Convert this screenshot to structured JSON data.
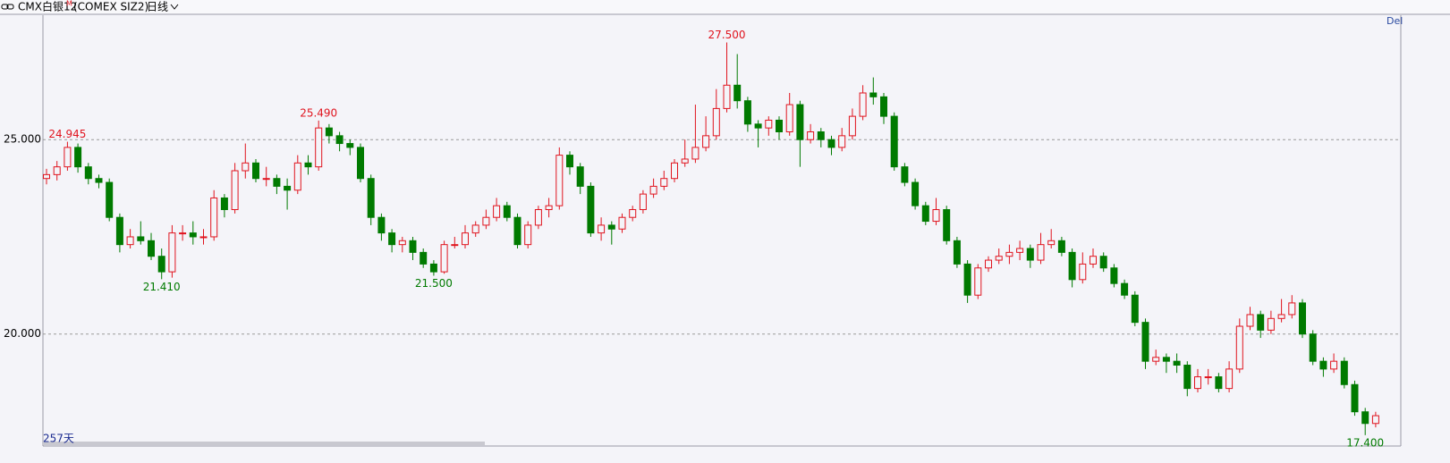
{
  "chart_data": {
    "type": "candlestick",
    "title": "CMX白银12",
    "title_badge": "M",
    "subtitle": "(COMEX SIZ2)",
    "period": "日线",
    "corner_label": "Del",
    "footer": "257天",
    "ylim": [
      17.12,
      28.2
    ],
    "yticks": [
      {
        "value": 25,
        "label": "25.000"
      },
      {
        "value": 20,
        "label": "20.000"
      }
    ],
    "grid": true,
    "up_color": "#e0141e",
    "down_color": "#007a00",
    "annotations": [
      24.945,
      {
        "value": 21.41,
        "label": "21.410"
      },
      {
        "value": 25.49,
        "label": "25.490"
      },
      {
        "value": 21.5,
        "label": "21.500"
      },
      {
        "value": 27.5,
        "label": "27.500"
      },
      {
        "value": 17.4,
        "label": "17.400"
      }
    ],
    "ohlc": [
      [
        24.0,
        24.25,
        23.85,
        24.1
      ],
      [
        24.1,
        24.45,
        23.95,
        24.3
      ],
      [
        24.3,
        24.945,
        24.2,
        24.8
      ],
      [
        24.8,
        24.9,
        24.15,
        24.3
      ],
      [
        24.3,
        24.4,
        23.85,
        24.0
      ],
      [
        24.0,
        24.1,
        23.75,
        23.9
      ],
      [
        23.9,
        24.0,
        22.9,
        23.0
      ],
      [
        23.0,
        23.1,
        22.1,
        22.3
      ],
      [
        22.3,
        22.7,
        22.2,
        22.5
      ],
      [
        22.5,
        22.9,
        22.3,
        22.4
      ],
      [
        22.4,
        22.6,
        21.9,
        22.0
      ],
      [
        22.0,
        22.2,
        21.41,
        21.6
      ],
      [
        21.6,
        22.8,
        21.45,
        22.6
      ],
      [
        22.6,
        22.8,
        22.4,
        22.6
      ],
      [
        22.6,
        22.9,
        22.3,
        22.5
      ],
      [
        22.5,
        22.7,
        22.3,
        22.5
      ],
      [
        22.5,
        23.7,
        22.4,
        23.5
      ],
      [
        23.5,
        23.6,
        23.0,
        23.2
      ],
      [
        23.2,
        24.4,
        23.1,
        24.2
      ],
      [
        24.2,
        24.9,
        24.0,
        24.4
      ],
      [
        24.4,
        24.5,
        23.9,
        24.0
      ],
      [
        24.0,
        24.3,
        23.8,
        24.0
      ],
      [
        24.0,
        24.1,
        23.6,
        23.8
      ],
      [
        23.8,
        24.0,
        23.2,
        23.7
      ],
      [
        23.7,
        24.6,
        23.6,
        24.4
      ],
      [
        24.4,
        24.6,
        24.1,
        24.3
      ],
      [
        24.3,
        25.49,
        24.2,
        25.3
      ],
      [
        25.3,
        25.4,
        24.9,
        25.1
      ],
      [
        25.1,
        25.2,
        24.7,
        24.9
      ],
      [
        24.9,
        25.0,
        24.6,
        24.8
      ],
      [
        24.8,
        24.9,
        23.9,
        24.0
      ],
      [
        24.0,
        24.1,
        22.8,
        23.0
      ],
      [
        23.0,
        23.1,
        22.4,
        22.6
      ],
      [
        22.6,
        22.7,
        22.1,
        22.3
      ],
      [
        22.3,
        22.5,
        22.1,
        22.4
      ],
      [
        22.4,
        22.5,
        21.9,
        22.1
      ],
      [
        22.1,
        22.2,
        21.7,
        21.8
      ],
      [
        21.8,
        21.9,
        21.5,
        21.6
      ],
      [
        21.6,
        22.4,
        21.55,
        22.3
      ],
      [
        22.3,
        22.5,
        22.2,
        22.3
      ],
      [
        22.3,
        22.8,
        22.2,
        22.6
      ],
      [
        22.6,
        22.9,
        22.5,
        22.8
      ],
      [
        22.8,
        23.2,
        22.7,
        23.0
      ],
      [
        23.0,
        23.5,
        22.9,
        23.3
      ],
      [
        23.3,
        23.4,
        22.9,
        23.0
      ],
      [
        23.0,
        23.1,
        22.2,
        22.3
      ],
      [
        22.3,
        22.9,
        22.2,
        22.8
      ],
      [
        22.8,
        23.3,
        22.7,
        23.2
      ],
      [
        23.2,
        23.5,
        23.0,
        23.3
      ],
      [
        23.3,
        24.8,
        23.2,
        24.6
      ],
      [
        24.6,
        24.7,
        24.1,
        24.3
      ],
      [
        24.3,
        24.4,
        23.6,
        23.8
      ],
      [
        23.8,
        23.9,
        22.5,
        22.6
      ],
      [
        22.6,
        23.0,
        22.4,
        22.8
      ],
      [
        22.8,
        22.9,
        22.3,
        22.7
      ],
      [
        22.7,
        23.1,
        22.6,
        23.0
      ],
      [
        23.0,
        23.3,
        22.9,
        23.2
      ],
      [
        23.2,
        23.7,
        23.1,
        23.6
      ],
      [
        23.6,
        24.0,
        23.5,
        23.8
      ],
      [
        23.8,
        24.2,
        23.7,
        24.0
      ],
      [
        24.0,
        24.5,
        23.9,
        24.4
      ],
      [
        24.4,
        25.0,
        24.3,
        24.5
      ],
      [
        24.5,
        25.9,
        24.4,
        24.8
      ],
      [
        24.8,
        25.6,
        24.7,
        25.1
      ],
      [
        25.1,
        26.3,
        25.0,
        25.8
      ],
      [
        25.8,
        27.5,
        25.7,
        26.4
      ],
      [
        26.4,
        27.2,
        25.8,
        26.0
      ],
      [
        26.0,
        26.1,
        25.2,
        25.4
      ],
      [
        25.4,
        25.5,
        24.8,
        25.3
      ],
      [
        25.3,
        25.6,
        25.1,
        25.5
      ],
      [
        25.5,
        25.6,
        25.0,
        25.2
      ],
      [
        25.2,
        26.2,
        25.1,
        25.9
      ],
      [
        25.9,
        26.0,
        24.3,
        25.0
      ],
      [
        25.0,
        25.4,
        24.9,
        25.2
      ],
      [
        25.2,
        25.3,
        24.8,
        25.0
      ],
      [
        25.0,
        25.1,
        24.6,
        24.8
      ],
      [
        24.8,
        25.3,
        24.7,
        25.1
      ],
      [
        25.1,
        25.8,
        25.0,
        25.6
      ],
      [
        25.6,
        26.4,
        25.5,
        26.2
      ],
      [
        26.2,
        26.6,
        25.9,
        26.1
      ],
      [
        26.1,
        26.2,
        25.4,
        25.6
      ],
      [
        25.6,
        25.7,
        24.2,
        24.3
      ],
      [
        24.3,
        24.4,
        23.8,
        23.9
      ],
      [
        23.9,
        24.0,
        23.2,
        23.3
      ],
      [
        23.3,
        23.4,
        22.8,
        22.9
      ],
      [
        22.9,
        23.5,
        22.8,
        23.2
      ],
      [
        23.2,
        23.3,
        22.3,
        22.4
      ],
      [
        22.4,
        22.5,
        21.7,
        21.8
      ],
      [
        21.8,
        21.9,
        20.8,
        21.0
      ],
      [
        21.0,
        21.8,
        20.9,
        21.7
      ],
      [
        21.7,
        22.0,
        21.6,
        21.9
      ],
      [
        21.9,
        22.2,
        21.8,
        22.0
      ],
      [
        22.0,
        22.3,
        21.8,
        22.1
      ],
      [
        22.1,
        22.4,
        21.9,
        22.2
      ],
      [
        22.2,
        22.3,
        21.7,
        21.9
      ],
      [
        21.9,
        22.6,
        21.8,
        22.3
      ],
      [
        22.3,
        22.7,
        22.2,
        22.4
      ],
      [
        22.4,
        22.5,
        22.0,
        22.1
      ],
      [
        22.1,
        22.2,
        21.2,
        21.4
      ],
      [
        21.4,
        22.1,
        21.3,
        21.8
      ],
      [
        21.8,
        22.2,
        21.7,
        22.0
      ],
      [
        22.0,
        22.1,
        21.6,
        21.7
      ],
      [
        21.7,
        21.8,
        21.2,
        21.3
      ],
      [
        21.3,
        21.4,
        20.9,
        21.0
      ],
      [
        21.0,
        21.1,
        20.2,
        20.3
      ],
      [
        20.3,
        20.4,
        19.1,
        19.3
      ],
      [
        19.3,
        19.6,
        19.2,
        19.4
      ],
      [
        19.4,
        19.5,
        19.0,
        19.3
      ],
      [
        19.3,
        19.5,
        19.0,
        19.2
      ],
      [
        19.2,
        19.3,
        18.4,
        18.6
      ],
      [
        18.6,
        19.1,
        18.5,
        18.9
      ],
      [
        18.9,
        19.1,
        18.7,
        18.9
      ],
      [
        18.9,
        19.0,
        18.5,
        18.6
      ],
      [
        18.6,
        19.3,
        18.5,
        19.1
      ],
      [
        19.1,
        20.4,
        19.0,
        20.2
      ],
      [
        20.2,
        20.7,
        20.1,
        20.5
      ],
      [
        20.5,
        20.6,
        19.9,
        20.1
      ],
      [
        20.1,
        20.6,
        20.0,
        20.4
      ],
      [
        20.4,
        20.9,
        20.3,
        20.5
      ],
      [
        20.5,
        21.0,
        20.4,
        20.8
      ],
      [
        20.8,
        20.9,
        19.9,
        20.0
      ],
      [
        20.0,
        20.1,
        19.2,
        19.3
      ],
      [
        19.3,
        19.4,
        18.9,
        19.1
      ],
      [
        19.1,
        19.5,
        19.0,
        19.3
      ],
      [
        19.3,
        19.4,
        18.6,
        18.7
      ],
      [
        18.7,
        18.8,
        17.9,
        18.0
      ],
      [
        18.0,
        18.1,
        17.4,
        17.7
      ],
      [
        17.7,
        18.0,
        17.6,
        17.9
      ]
    ]
  }
}
